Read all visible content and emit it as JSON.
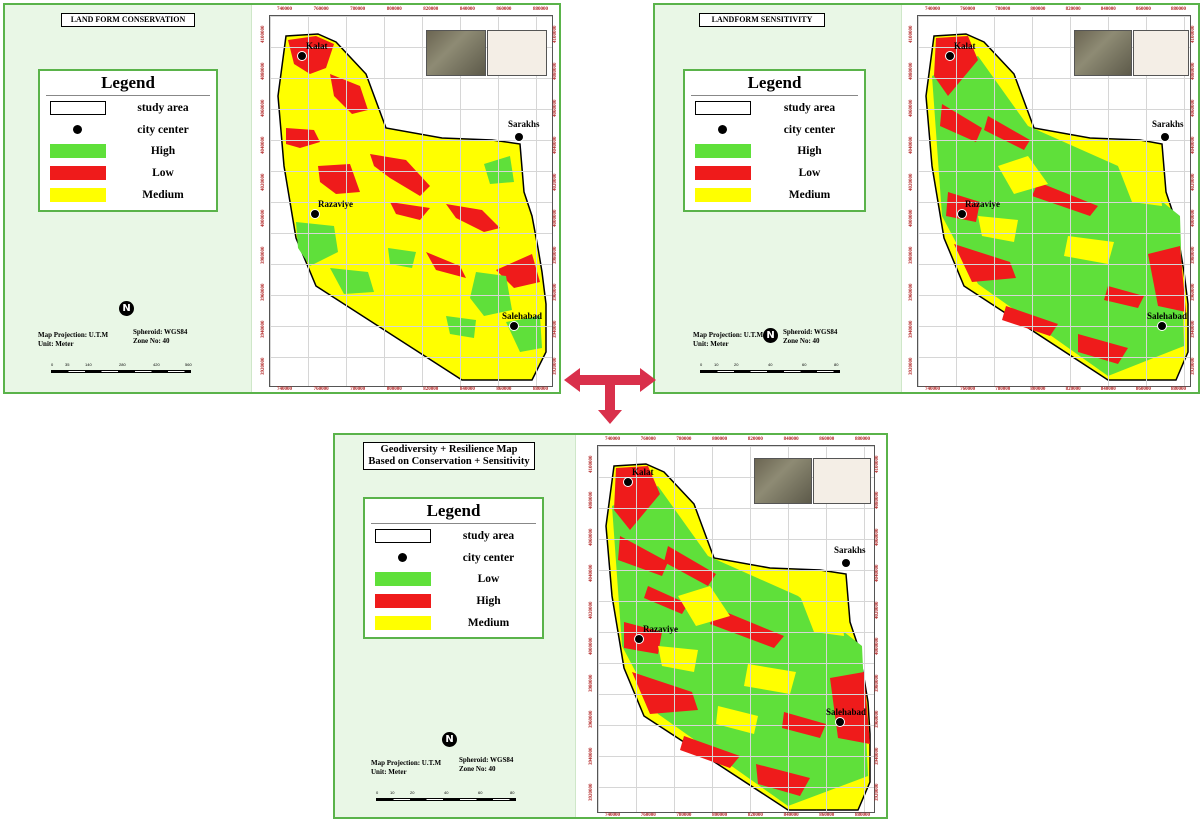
{
  "colors": {
    "high": "#5fe03a",
    "low": "#ef1b1b",
    "medium": "#ffff00",
    "frame": "#5ab34a",
    "arrow": "#d9304b",
    "tick_text": "#b02020"
  },
  "map_common": {
    "projection": "Map Projection: U.T.M",
    "unit": "Unit: Meter",
    "spheroid": "Spheroid: WGS84",
    "zone": "Zone No: 40",
    "north_icon": "N",
    "x_ticks": [
      "740000",
      "760000",
      "780000",
      "800000",
      "820000",
      "840000",
      "860000",
      "880000"
    ],
    "y_ticks": [
      "4100000",
      "4080000",
      "4060000",
      "4040000",
      "4020000",
      "4000000",
      "3980000",
      "3960000",
      "3940000",
      "3920000"
    ],
    "cities": {
      "kalat": "Kalat",
      "sarakhs": "Sarakhs",
      "razaviye": "Razaviye",
      "salehabad": "Salehabad"
    }
  },
  "panel_conservation": {
    "title": "LAND FORM CONSERVATION",
    "legend_title": "Legend",
    "legend": [
      {
        "label": "study area",
        "symbol": "box"
      },
      {
        "label": "city center",
        "symbol": "dot"
      },
      {
        "label": "High",
        "symbol": "high"
      },
      {
        "label": "Low",
        "symbol": "low"
      },
      {
        "label": "Medium",
        "symbol": "medium"
      }
    ],
    "scale": [
      "0",
      "35",
      "140",
      "280",
      "420",
      "560"
    ]
  },
  "panel_sensitivity": {
    "title": "LANDFORM SENSITIVITY",
    "legend_title": "Legend",
    "legend": [
      {
        "label": "study area",
        "symbol": "box"
      },
      {
        "label": "city center",
        "symbol": "dot"
      },
      {
        "label": "High",
        "symbol": "high"
      },
      {
        "label": "Low",
        "symbol": "low"
      },
      {
        "label": "Medium",
        "symbol": "medium"
      }
    ],
    "scale": [
      "0",
      "10",
      "20",
      "40",
      "60",
      "80"
    ]
  },
  "panel_combined": {
    "title_line1": "Geodiversity + Resilience Map",
    "title_line2": "Based on Conservation + Sensitivity",
    "legend_title": "Legend",
    "legend": [
      {
        "label": "study area",
        "symbol": "box"
      },
      {
        "label": "city center",
        "symbol": "dot"
      },
      {
        "label": "Low",
        "symbol": "high"
      },
      {
        "label": "High",
        "symbol": "low"
      },
      {
        "label": "Medium",
        "symbol": "medium"
      }
    ],
    "scale": [
      "0",
      "10",
      "20",
      "40",
      "60",
      "80"
    ]
  }
}
